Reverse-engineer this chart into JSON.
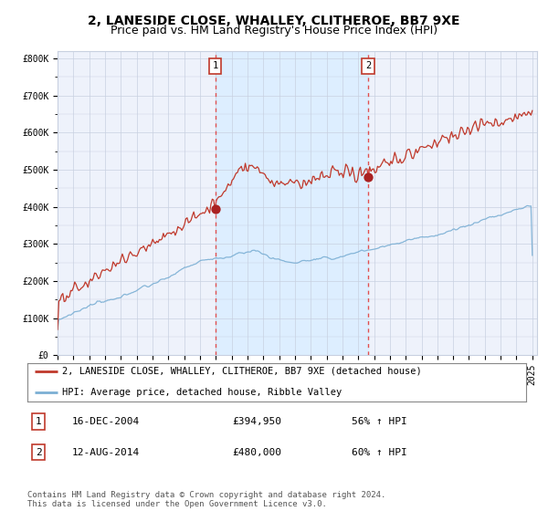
{
  "title": "2, LANESIDE CLOSE, WHALLEY, CLITHEROE, BB7 9XE",
  "subtitle": "Price paid vs. HM Land Registry's House Price Index (HPI)",
  "ylim": [
    0,
    820000
  ],
  "yticks": [
    0,
    100000,
    200000,
    300000,
    400000,
    500000,
    600000,
    700000,
    800000
  ],
  "ytick_labels": [
    "£0",
    "£100K",
    "£200K",
    "£300K",
    "£400K",
    "£500K",
    "£600K",
    "£700K",
    "£800K"
  ],
  "hpi_color": "#7bafd4",
  "price_color": "#c0392b",
  "marker_color": "#aa2222",
  "vline_color": "#e05050",
  "shade_color": "#ddeeff",
  "background_color": "#eef2fb",
  "grid_color": "#c8d0e0",
  "sale1_date_num": 2004.96,
  "sale1_price": 394950,
  "sale1_label": "1",
  "sale2_date_num": 2014.62,
  "sale2_price": 480000,
  "sale2_label": "2",
  "legend_line1": "2, LANESIDE CLOSE, WHALLEY, CLITHEROE, BB7 9XE (detached house)",
  "legend_line2": "HPI: Average price, detached house, Ribble Valley",
  "table_row1": [
    "1",
    "16-DEC-2004",
    "£394,950",
    "56% ↑ HPI"
  ],
  "table_row2": [
    "2",
    "12-AUG-2014",
    "£480,000",
    "60% ↑ HPI"
  ],
  "footer": "Contains HM Land Registry data © Crown copyright and database right 2024.\nThis data is licensed under the Open Government Licence v3.0.",
  "title_fontsize": 10,
  "subtitle_fontsize": 9,
  "tick_fontsize": 7,
  "legend_fontsize": 7.5,
  "table_fontsize": 8,
  "footer_fontsize": 6.5
}
